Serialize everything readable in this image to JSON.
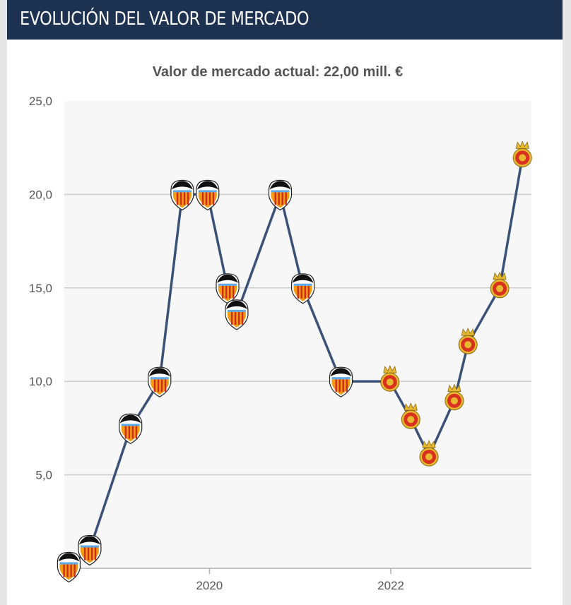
{
  "header": {
    "title": "EVOLUCIÓN DEL VALOR DE MERCADO"
  },
  "chart_data": {
    "type": "line",
    "title": "",
    "subtitle": "Valor de mercado actual: 22,00 mill. €",
    "xlabel": "",
    "ylabel": "",
    "ylim": [
      0,
      25
    ],
    "xlim": [
      2018.4,
      2023.55
    ],
    "y_ticks": [
      {
        "value": 5,
        "label": "5,0"
      },
      {
        "value": 10,
        "label": "10,0"
      },
      {
        "value": 15,
        "label": "15,0"
      },
      {
        "value": 20,
        "label": "20,0"
      },
      {
        "value": 25,
        "label": "25,0"
      }
    ],
    "x_ticks": [
      {
        "value": 2020,
        "label": "2020"
      },
      {
        "value": 2022,
        "label": "2022"
      }
    ],
    "grid": true,
    "legend": "none",
    "colors": {
      "line": "#3a5278",
      "grid": "#cccccc",
      "plot_bg": "#f7f7f7",
      "header_bg": "#1d3150",
      "valencia_orange": "#f39c12",
      "valencia_red": "#cf2a1a",
      "mallorca_red": "#d8321f",
      "mallorca_gold": "#e8b830"
    },
    "series": [
      {
        "name": "",
        "points": [
          {
            "x": 2018.45,
            "y": 0.1,
            "club": "valencia"
          },
          {
            "x": 2018.68,
            "y": 1.0,
            "club": "valencia"
          },
          {
            "x": 2019.13,
            "y": 7.5,
            "club": "valencia"
          },
          {
            "x": 2019.45,
            "y": 10.0,
            "club": "valencia"
          },
          {
            "x": 2019.7,
            "y": 20.0,
            "club": "valencia"
          },
          {
            "x": 2019.98,
            "y": 20.0,
            "club": "valencia"
          },
          {
            "x": 2020.2,
            "y": 15.0,
            "club": "valencia"
          },
          {
            "x": 2020.3,
            "y": 13.6,
            "club": "valencia"
          },
          {
            "x": 2020.78,
            "y": 20.0,
            "club": "valencia"
          },
          {
            "x": 2021.03,
            "y": 15.0,
            "club": "valencia"
          },
          {
            "x": 2021.45,
            "y": 10.0,
            "club": "valencia"
          },
          {
            "x": 2021.99,
            "y": 10.0,
            "club": "mallorca"
          },
          {
            "x": 2022.22,
            "y": 8.0,
            "club": "mallorca"
          },
          {
            "x": 2022.42,
            "y": 6.0,
            "club": "mallorca"
          },
          {
            "x": 2022.7,
            "y": 9.0,
            "club": "mallorca"
          },
          {
            "x": 2022.85,
            "y": 12.0,
            "club": "mallorca"
          },
          {
            "x": 2023.2,
            "y": 15.0,
            "club": "mallorca"
          },
          {
            "x": 2023.45,
            "y": 22.0,
            "club": "mallorca"
          }
        ]
      }
    ]
  }
}
